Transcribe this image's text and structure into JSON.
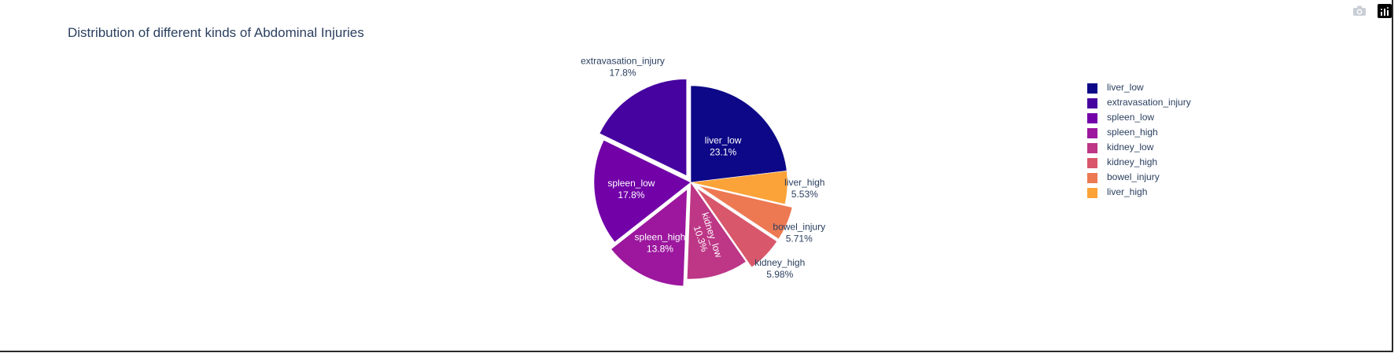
{
  "title": "Distribution of different kinds of Abdominal Injuries",
  "modebar": {
    "camera_icon": "camera-icon",
    "plotly_logo": "plotly-logo-icon"
  },
  "chart_data": {
    "type": "pie",
    "direction": "clockwise",
    "start": "12 o'clock",
    "show_legend": true,
    "legend_placement": "right",
    "slices": [
      {
        "label": "liver_low",
        "value": 23.1,
        "text": "23.1%",
        "color": "#0d0887",
        "pulled": false,
        "label_position": "inside"
      },
      {
        "label": "liver_high",
        "value": 5.53,
        "text": "5.53%",
        "color": "#fba238",
        "pulled": false,
        "label_position": "outside"
      },
      {
        "label": "bowel_injury",
        "value": 5.71,
        "text": "5.71%",
        "color": "#ed7953",
        "pulled": true,
        "label_position": "outside"
      },
      {
        "label": "kidney_high",
        "value": 5.98,
        "text": "5.98%",
        "color": "#d8576b",
        "pulled": true,
        "label_position": "outside"
      },
      {
        "label": "kidney_low",
        "value": 10.3,
        "text": "10.3%",
        "color": "#bd3786",
        "pulled": false,
        "label_position": "inside-radial"
      },
      {
        "label": "spleen_high",
        "value": 13.8,
        "text": "13.8%",
        "color": "#9c179e",
        "pulled": true,
        "label_position": "inside"
      },
      {
        "label": "spleen_low",
        "value": 17.8,
        "text": "17.8%",
        "color": "#7201a8",
        "pulled": false,
        "label_position": "inside"
      },
      {
        "label": "extravasation_injury",
        "value": 17.8,
        "text": "17.8%",
        "color": "#46039f",
        "pulled": true,
        "label_position": "outside"
      }
    ],
    "legend": [
      {
        "label": "liver_low",
        "color": "#0d0887"
      },
      {
        "label": "extravasation_injury",
        "color": "#46039f"
      },
      {
        "label": "spleen_low",
        "color": "#7201a8"
      },
      {
        "label": "spleen_high",
        "color": "#9c179e"
      },
      {
        "label": "kidney_low",
        "color": "#bd3786"
      },
      {
        "label": "kidney_high",
        "color": "#d8576b"
      },
      {
        "label": "bowel_injury",
        "color": "#ed7953"
      },
      {
        "label": "liver_high",
        "color": "#fba238"
      }
    ]
  }
}
